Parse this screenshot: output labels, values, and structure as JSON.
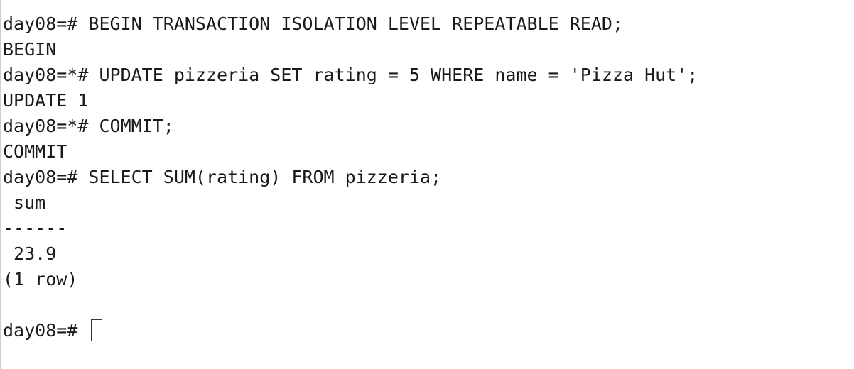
{
  "terminal": {
    "lines": [
      "day08=# BEGIN TRANSACTION ISOLATION LEVEL REPEATABLE READ;",
      "BEGIN",
      "day08=*# UPDATE pizzeria SET rating = 5 WHERE name = 'Pizza Hut';",
      "UPDATE 1",
      "day08=*# COMMIT;",
      "COMMIT",
      "day08=# SELECT SUM(rating) FROM pizzeria;",
      " sum",
      "------",
      " 23.9",
      "(1 row)",
      ""
    ],
    "current_prompt": "day08=# "
  }
}
